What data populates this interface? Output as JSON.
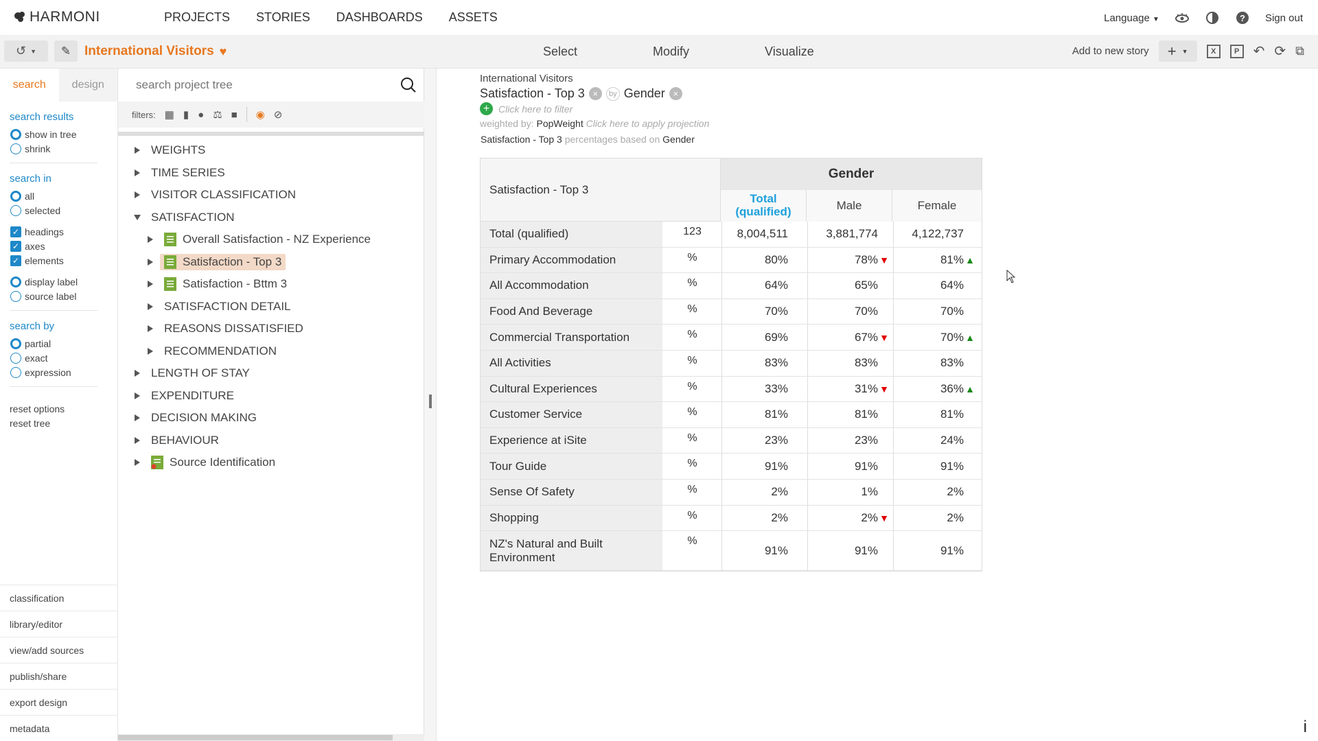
{
  "app": {
    "logo": "HARMONI",
    "nav": [
      "PROJECTS",
      "STORIES",
      "DASHBOARDS",
      "ASSETS"
    ],
    "language": "Language",
    "signout": "Sign out"
  },
  "toolbar": {
    "project_title": "International Visitors",
    "modes": [
      "Select",
      "Modify",
      "Visualize"
    ],
    "add_to_story": "Add to new story"
  },
  "left": {
    "tab_search": "search",
    "tab_design": "design",
    "search_results_head": "search results",
    "show_in_tree": "show in tree",
    "shrink": "shrink",
    "search_in_head": "search in",
    "all": "all",
    "selected": "selected",
    "headings": "headings",
    "axes": "axes",
    "elements": "elements",
    "display_label": "display label",
    "source_label": "source label",
    "search_by_head": "search by",
    "partial": "partial",
    "exact": "exact",
    "expression": "expression",
    "reset_options": "reset options",
    "reset_tree": "reset tree",
    "links": [
      "classification",
      "library/editor",
      "view/add sources",
      "publish/share",
      "export design",
      "metadata"
    ]
  },
  "tree": {
    "search_placeholder": "search project tree",
    "filters_label": "filters:",
    "nodes": [
      {
        "label": "WEIGHTS",
        "level": 0,
        "expanded": false
      },
      {
        "label": "TIME SERIES",
        "level": 0,
        "expanded": false
      },
      {
        "label": "VISITOR CLASSIFICATION",
        "level": 0,
        "expanded": false
      },
      {
        "label": "SATISFACTION",
        "level": 0,
        "expanded": true
      },
      {
        "label": "Overall Satisfaction - NZ Experience",
        "level": 1,
        "doc": true
      },
      {
        "label": "Satisfaction - Top 3",
        "level": 1,
        "doc": true,
        "selected": true
      },
      {
        "label": "Satisfaction - Bttm 3",
        "level": 1,
        "doc": true
      },
      {
        "label": "SATISFACTION DETAIL",
        "level": 1
      },
      {
        "label": "REASONS DISSATISFIED",
        "level": 1
      },
      {
        "label": "RECOMMENDATION",
        "level": 1
      },
      {
        "label": "LENGTH OF STAY",
        "level": 0
      },
      {
        "label": "EXPENDITURE",
        "level": 0
      },
      {
        "label": "DECISION MAKING",
        "level": 0
      },
      {
        "label": "BEHAVIOUR",
        "level": 0
      },
      {
        "label": "Source Identification",
        "level": 0,
        "doc": true,
        "source": true
      }
    ]
  },
  "report": {
    "project": "International Visitors",
    "row_var": "Satisfaction - Top 3",
    "col_var": "Gender",
    "filter_hint": "Click here to filter",
    "weighted_by_label": "weighted by:",
    "weight": "PopWeight",
    "projection_hint": "Click here to apply projection",
    "pct_pre": "Satisfaction - Top 3",
    "pct_mid": "percentages based on",
    "pct_base": "Gender",
    "table": {
      "corner": "Satisfaction - Top 3",
      "group": "Gender",
      "columns": [
        "Total (qualified)",
        "Male",
        "Female"
      ],
      "total_row": {
        "label": "Total (qualified)",
        "unit": "123",
        "values": [
          "8,004,511",
          "3,881,774",
          "4,122,737"
        ]
      },
      "rows": [
        {
          "label": "Primary Accommodation",
          "unit": "%",
          "values": [
            "80%",
            "78%",
            "81%"
          ],
          "sig": [
            "",
            "down",
            "up"
          ]
        },
        {
          "label": "All Accommodation",
          "unit": "%",
          "values": [
            "64%",
            "65%",
            "64%"
          ],
          "sig": [
            "",
            "",
            ""
          ]
        },
        {
          "label": "Food And Beverage",
          "unit": "%",
          "values": [
            "70%",
            "70%",
            "70%"
          ],
          "sig": [
            "",
            "",
            ""
          ]
        },
        {
          "label": "Commercial Transportation",
          "unit": "%",
          "values": [
            "69%",
            "67%",
            "70%"
          ],
          "sig": [
            "",
            "down",
            "up"
          ]
        },
        {
          "label": "All Activities",
          "unit": "%",
          "values": [
            "83%",
            "83%",
            "83%"
          ],
          "sig": [
            "",
            "",
            ""
          ]
        },
        {
          "label": "Cultural Experiences",
          "unit": "%",
          "values": [
            "33%",
            "31%",
            "36%"
          ],
          "sig": [
            "",
            "down",
            "up"
          ]
        },
        {
          "label": "Customer Service",
          "unit": "%",
          "values": [
            "81%",
            "81%",
            "81%"
          ],
          "sig": [
            "",
            "",
            ""
          ]
        },
        {
          "label": "Experience at iSite",
          "unit": "%",
          "values": [
            "23%",
            "23%",
            "24%"
          ],
          "sig": [
            "",
            "",
            ""
          ]
        },
        {
          "label": "Tour Guide",
          "unit": "%",
          "values": [
            "91%",
            "91%",
            "91%"
          ],
          "sig": [
            "",
            "",
            ""
          ]
        },
        {
          "label": "Sense Of Safety",
          "unit": "%",
          "values": [
            "2%",
            "1%",
            "2%"
          ],
          "sig": [
            "",
            "",
            ""
          ]
        },
        {
          "label": "Shopping",
          "unit": "%",
          "values": [
            "2%",
            "2%",
            "2%"
          ],
          "sig": [
            "",
            "down",
            ""
          ]
        },
        {
          "label": "NZ's Natural and Built Environment",
          "unit": "%",
          "values": [
            "91%",
            "91%",
            "91%"
          ],
          "sig": [
            "",
            "",
            ""
          ]
        }
      ]
    }
  },
  "colors": {
    "accent": "#e8781e",
    "link": "#1e88c8",
    "sig_down": "#e10000",
    "sig_up": "#1a8a1a"
  }
}
